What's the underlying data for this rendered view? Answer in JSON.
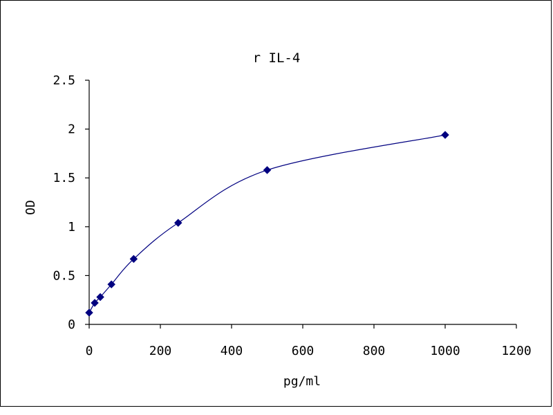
{
  "chart_data": {
    "type": "line",
    "title": "r IL-4",
    "xlabel": "pg/ml",
    "ylabel": "OD",
    "xlim": [
      0,
      1200
    ],
    "ylim": [
      0,
      2.5
    ],
    "xticks": [
      "0",
      "200",
      "400",
      "600",
      "800",
      "1000",
      "1200"
    ],
    "yticks": [
      "0",
      "0.5",
      "1",
      "1.5",
      "2",
      "2.5"
    ],
    "grid": false,
    "legend": "none",
    "line_color": "#000080",
    "marker": "diamond",
    "series": [
      {
        "x": [
          0,
          15.6,
          31.25,
          62.5,
          125,
          250,
          500,
          1000
        ],
        "y": [
          0.12,
          0.22,
          0.28,
          0.41,
          0.67,
          1.04,
          1.58,
          1.94
        ]
      }
    ]
  }
}
